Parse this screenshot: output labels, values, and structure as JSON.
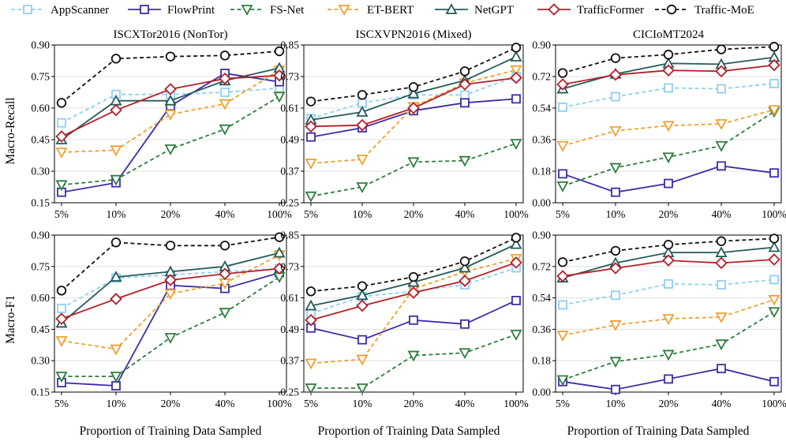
{
  "figure": {
    "xlabel": "Proportion of Training Data Sampled",
    "row_ylabels": [
      "Macro-Recall",
      "Macro-F1"
    ]
  },
  "legend": [
    {
      "name": "AppScanner",
      "color": "#8fd0f0",
      "marker": "square-icon",
      "dash": "dashed"
    },
    {
      "name": "FlowPrint",
      "color": "#3b2ea6",
      "marker": "square-icon",
      "dash": "solid"
    },
    {
      "name": "FS-Net",
      "color": "#2e7d3e",
      "marker": "triangle-down-icon",
      "dash": "dashed"
    },
    {
      "name": "ET-BERT",
      "color": "#f0a030",
      "marker": "triangle-down-icon",
      "dash": "dashed"
    },
    {
      "name": "NetGPT",
      "color": "#275a5a",
      "marker": "triangle-up-icon",
      "dash": "solid"
    },
    {
      "name": "TrafficFormer",
      "color": "#b3202a",
      "marker": "diamond-icon",
      "dash": "solid"
    },
    {
      "name": "Traffic-MoE",
      "color": "#111111",
      "marker": "circle-icon",
      "dash": "dashed"
    }
  ],
  "chart_data": [
    {
      "type": "line",
      "title": "ISCXTor2016 (NonTor)",
      "ylabel": "Macro-Recall",
      "categories": [
        "5%",
        "10%",
        "20%",
        "40%",
        "100%"
      ],
      "ylim": [
        0.15,
        0.9
      ],
      "yticks": [
        "0.15",
        "0.30",
        "0.45",
        "0.60",
        "0.75",
        "0.90"
      ],
      "series": [
        {
          "name": "AppScanner",
          "values": [
            0.53,
            0.665,
            0.665,
            0.675,
            0.695
          ]
        },
        {
          "name": "FlowPrint",
          "values": [
            0.2,
            0.245,
            0.61,
            0.765,
            0.725
          ]
        },
        {
          "name": "FS-Net",
          "values": [
            0.235,
            0.26,
            0.405,
            0.5,
            0.655
          ]
        },
        {
          "name": "ET-BERT",
          "values": [
            0.39,
            0.4,
            0.57,
            0.62,
            0.78
          ]
        },
        {
          "name": "NetGPT",
          "values": [
            0.45,
            0.635,
            0.635,
            0.73,
            0.79
          ]
        },
        {
          "name": "TrafficFormer",
          "values": [
            0.465,
            0.59,
            0.69,
            0.74,
            0.755
          ]
        },
        {
          "name": "Traffic-MoE",
          "values": [
            0.625,
            0.835,
            0.845,
            0.85,
            0.87
          ]
        }
      ]
    },
    {
      "type": "line",
      "title": "ISCXVPN2016 (Mixed)",
      "ylabel": "Macro-Recall",
      "categories": [
        "5%",
        "10%",
        "20%",
        "40%",
        "100%"
      ],
      "ylim": [
        0.25,
        0.85
      ],
      "yticks": [
        "0.25",
        "0.37",
        "0.49",
        "0.61",
        "0.73",
        "0.85"
      ],
      "series": [
        {
          "name": "AppScanner",
          "values": [
            0.57,
            0.63,
            0.66,
            0.66,
            0.73
          ]
        },
        {
          "name": "FlowPrint",
          "values": [
            0.5,
            0.535,
            0.6,
            0.63,
            0.645
          ]
        },
        {
          "name": "FS-Net",
          "values": [
            0.275,
            0.31,
            0.405,
            0.41,
            0.475
          ]
        },
        {
          "name": "ET-BERT",
          "values": [
            0.4,
            0.415,
            0.615,
            0.705,
            0.755
          ]
        },
        {
          "name": "NetGPT",
          "values": [
            0.565,
            0.595,
            0.665,
            0.715,
            0.805
          ]
        },
        {
          "name": "TrafficFormer",
          "values": [
            0.54,
            0.545,
            0.61,
            0.7,
            0.725
          ]
        },
        {
          "name": "Traffic-MoE",
          "values": [
            0.635,
            0.66,
            0.69,
            0.75,
            0.84
          ]
        }
      ]
    },
    {
      "type": "line",
      "title": "CICIoMT2024",
      "ylabel": "Macro-Recall",
      "categories": [
        "5%",
        "10%",
        "20%",
        "40%",
        "100%"
      ],
      "ylim": [
        0.0,
        0.9
      ],
      "yticks": [
        "0.00",
        "0.18",
        "0.36",
        "0.54",
        "0.72",
        "0.90"
      ],
      "series": [
        {
          "name": "AppScanner",
          "values": [
            0.545,
            0.605,
            0.655,
            0.65,
            0.68
          ]
        },
        {
          "name": "FlowPrint",
          "values": [
            0.165,
            0.06,
            0.11,
            0.21,
            0.17
          ]
        },
        {
          "name": "FS-Net",
          "values": [
            0.095,
            0.2,
            0.26,
            0.325,
            0.52
          ]
        },
        {
          "name": "ET-BERT",
          "values": [
            0.325,
            0.41,
            0.44,
            0.45,
            0.53
          ]
        },
        {
          "name": "NetGPT",
          "values": [
            0.65,
            0.735,
            0.795,
            0.79,
            0.83
          ]
        },
        {
          "name": "TrafficFormer",
          "values": [
            0.675,
            0.73,
            0.755,
            0.75,
            0.785
          ]
        },
        {
          "name": "Traffic-MoE",
          "values": [
            0.74,
            0.825,
            0.845,
            0.875,
            0.89
          ]
        }
      ]
    },
    {
      "type": "line",
      "title": "",
      "ylabel": "Macro-F1",
      "categories": [
        "5%",
        "10%",
        "20%",
        "40%",
        "100%"
      ],
      "ylim": [
        0.15,
        0.9
      ],
      "yticks": [
        "0.15",
        "0.30",
        "0.45",
        "0.60",
        "0.75",
        "0.90"
      ],
      "series": [
        {
          "name": "AppScanner",
          "values": [
            0.55,
            0.695,
            0.71,
            0.725,
            0.74
          ]
        },
        {
          "name": "FlowPrint",
          "values": [
            0.195,
            0.18,
            0.66,
            0.645,
            0.72
          ]
        },
        {
          "name": "FS-Net",
          "values": [
            0.225,
            0.225,
            0.41,
            0.53,
            0.7
          ]
        },
        {
          "name": "ET-BERT",
          "values": [
            0.395,
            0.355,
            0.62,
            0.67,
            0.805
          ]
        },
        {
          "name": "NetGPT",
          "values": [
            0.48,
            0.7,
            0.725,
            0.75,
            0.815
          ]
        },
        {
          "name": "TrafficFormer",
          "values": [
            0.5,
            0.595,
            0.685,
            0.715,
            0.74
          ]
        },
        {
          "name": "Traffic-MoE",
          "values": [
            0.635,
            0.865,
            0.85,
            0.85,
            0.89
          ]
        }
      ]
    },
    {
      "type": "line",
      "title": "",
      "ylabel": "Macro-F1",
      "categories": [
        "5%",
        "10%",
        "20%",
        "40%",
        "100%"
      ],
      "ylim": [
        0.25,
        0.85
      ],
      "yticks": [
        "0.25",
        "0.37",
        "0.49",
        "0.61",
        "0.73",
        "0.85"
      ],
      "series": [
        {
          "name": "AppScanner",
          "values": [
            0.55,
            0.615,
            0.635,
            0.66,
            0.725
          ]
        },
        {
          "name": "FlowPrint",
          "values": [
            0.495,
            0.45,
            0.525,
            0.51,
            0.6
          ]
        },
        {
          "name": "FS-Net",
          "values": [
            0.265,
            0.265,
            0.39,
            0.4,
            0.47
          ]
        },
        {
          "name": "ET-BERT",
          "values": [
            0.36,
            0.375,
            0.645,
            0.71,
            0.76
          ]
        },
        {
          "name": "NetGPT",
          "values": [
            0.58,
            0.62,
            0.67,
            0.725,
            0.815
          ]
        },
        {
          "name": "TrafficFormer",
          "values": [
            0.525,
            0.58,
            0.63,
            0.675,
            0.745
          ]
        },
        {
          "name": "Traffic-MoE",
          "values": [
            0.635,
            0.655,
            0.69,
            0.75,
            0.84
          ]
        }
      ]
    },
    {
      "type": "line",
      "title": "",
      "ylabel": "Macro-F1",
      "categories": [
        "5%",
        "10%",
        "20%",
        "40%",
        "100%"
      ],
      "ylim": [
        0.0,
        0.9
      ],
      "yticks": [
        "0.00",
        "0.18",
        "0.36",
        "0.54",
        "0.72",
        "0.90"
      ],
      "series": [
        {
          "name": "AppScanner",
          "values": [
            0.5,
            0.555,
            0.62,
            0.615,
            0.645
          ]
        },
        {
          "name": "FlowPrint",
          "values": [
            0.06,
            0.015,
            0.075,
            0.135,
            0.06
          ]
        },
        {
          "name": "FS-Net",
          "values": [
            0.07,
            0.175,
            0.215,
            0.275,
            0.46
          ]
        },
        {
          "name": "ET-BERT",
          "values": [
            0.325,
            0.385,
            0.42,
            0.43,
            0.53
          ]
        },
        {
          "name": "NetGPT",
          "values": [
            0.655,
            0.74,
            0.8,
            0.8,
            0.83
          ]
        },
        {
          "name": "TrafficFormer",
          "values": [
            0.665,
            0.71,
            0.755,
            0.74,
            0.76
          ]
        },
        {
          "name": "Traffic-MoE",
          "values": [
            0.745,
            0.81,
            0.845,
            0.865,
            0.88
          ]
        }
      ]
    }
  ]
}
